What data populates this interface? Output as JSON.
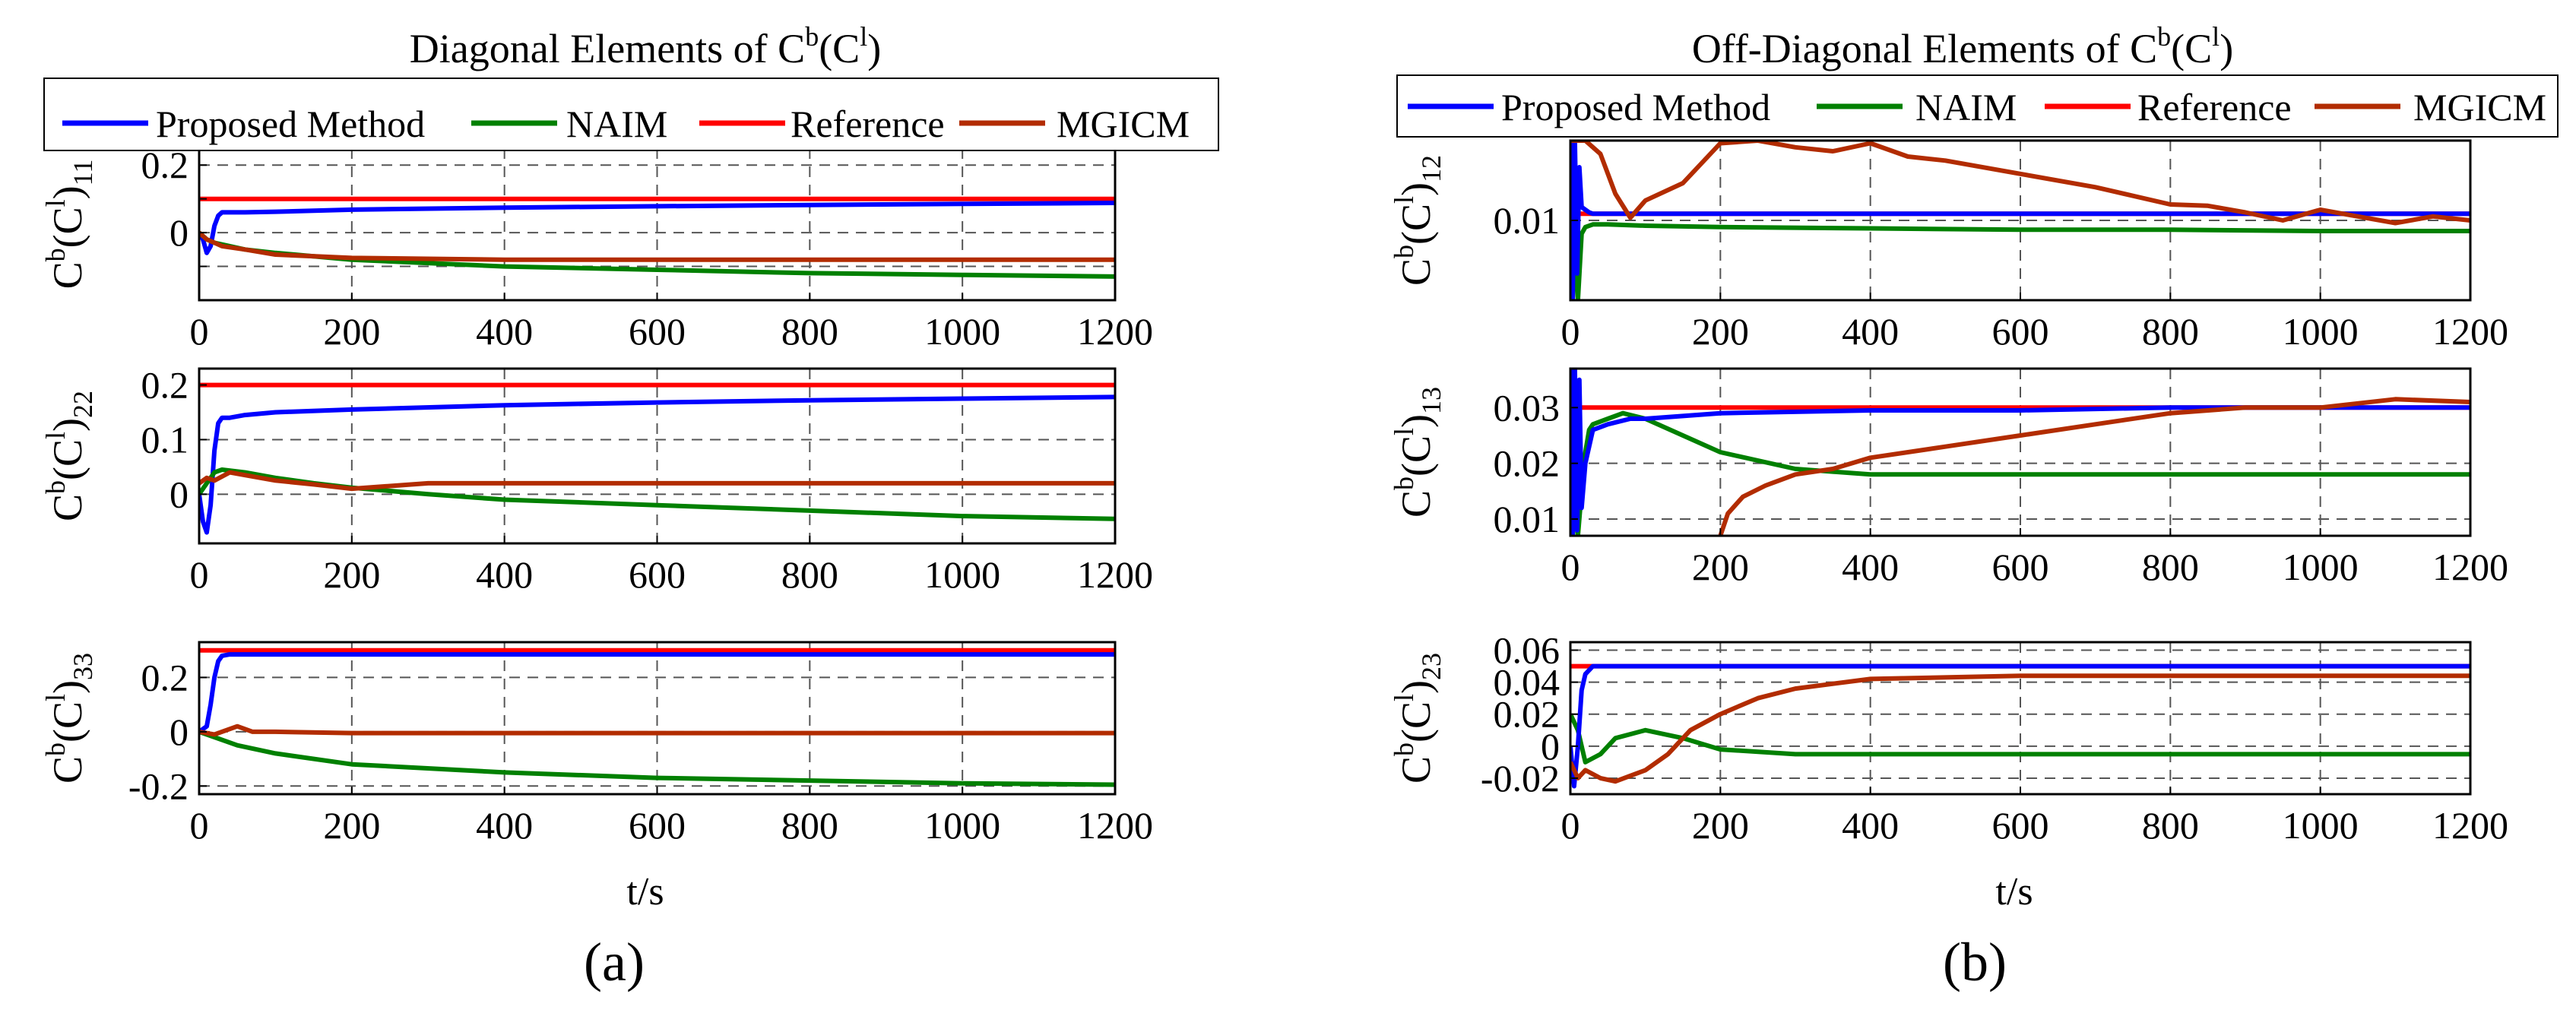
{
  "colors": {
    "proposed": "#0000ff",
    "naim": "#008000",
    "reference": "#ff0000",
    "mgicm": "#b22c00",
    "grid": "#555555",
    "axis": "#000000"
  },
  "panels": [
    {
      "title": "Diagonal Elements of C^b(C^l)",
      "title_main": "Diagonal Elements of C",
      "title_sup": "b",
      "title_mid": "(C",
      "title_sup2": "l",
      "title_end": ")",
      "caption": "(a)",
      "xlabel": "t/s"
    },
    {
      "title": "Off-Diagonal Elements of C^b(C^l)",
      "title_main": "Off-Diagonal Elements of C",
      "title_sup": "b",
      "title_mid": "(C",
      "title_sup2": "l",
      "title_end": ")",
      "caption": "(b)",
      "xlabel": "t/s"
    }
  ],
  "legend": [
    "Proposed Method",
    "NAIM",
    "Reference",
    "MGICM"
  ],
  "chart_data": [
    {
      "type": "line",
      "id": "a1",
      "ylabel": "C^b(C^l)_11",
      "ylabel_parts": {
        "C": "C",
        "b": "b",
        "open": "(C",
        "l": "l",
        "close": ")",
        "sub": "11"
      },
      "xlim": [
        0,
        1200
      ],
      "ylim": [
        -0.2,
        0.25
      ],
      "xticks": [
        0,
        200,
        400,
        600,
        800,
        1000,
        1200
      ],
      "yticks": [
        -0.1,
        0,
        0.1,
        0.2
      ],
      "ytick_labels": [
        "",
        "0",
        "",
        "0.2"
      ],
      "series": [
        {
          "name": "Reference",
          "x": [
            0,
            1200
          ],
          "y": [
            0.1,
            0.1
          ]
        },
        {
          "name": "Proposed Method",
          "x": [
            0,
            5,
            10,
            15,
            20,
            25,
            30,
            40,
            60,
            100,
            200,
            400,
            600,
            800,
            1000,
            1200
          ],
          "y": [
            0,
            -0.02,
            -0.06,
            -0.04,
            0.02,
            0.05,
            0.06,
            0.06,
            0.06,
            0.062,
            0.068,
            0.074,
            0.078,
            0.082,
            0.085,
            0.088
          ]
        },
        {
          "name": "NAIM",
          "x": [
            0,
            10,
            20,
            30,
            60,
            100,
            200,
            400,
            600,
            800,
            1000,
            1200
          ],
          "y": [
            0,
            -0.02,
            -0.03,
            -0.035,
            -0.05,
            -0.06,
            -0.08,
            -0.1,
            -0.11,
            -0.12,
            -0.125,
            -0.13
          ]
        },
        {
          "name": "MGICM",
          "x": [
            0,
            10,
            20,
            30,
            60,
            100,
            200,
            400,
            600,
            800,
            1000,
            1200
          ],
          "y": [
            0,
            -0.02,
            -0.03,
            -0.04,
            -0.05,
            -0.065,
            -0.075,
            -0.08,
            -0.08,
            -0.08,
            -0.08,
            -0.08
          ]
        }
      ]
    },
    {
      "type": "line",
      "id": "a2",
      "ylabel": "C^b(C^l)_22",
      "ylabel_parts": {
        "C": "C",
        "b": "b",
        "open": "(C",
        "l": "l",
        "close": ")",
        "sub": "22"
      },
      "xlim": [
        0,
        1200
      ],
      "ylim": [
        -0.09,
        0.23
      ],
      "xticks": [
        0,
        200,
        400,
        600,
        800,
        1000,
        1200
      ],
      "yticks": [
        0,
        0.1,
        0.2
      ],
      "ytick_labels": [
        "0",
        "0.1",
        "0.2"
      ],
      "series": [
        {
          "name": "Reference",
          "x": [
            0,
            1200
          ],
          "y": [
            0.2,
            0.2
          ]
        },
        {
          "name": "Proposed Method",
          "x": [
            0,
            5,
            10,
            15,
            20,
            25,
            30,
            40,
            60,
            100,
            200,
            400,
            600,
            800,
            1000,
            1200
          ],
          "y": [
            0,
            -0.05,
            -0.07,
            -0.02,
            0.08,
            0.13,
            0.14,
            0.14,
            0.145,
            0.15,
            0.155,
            0.163,
            0.168,
            0.172,
            0.175,
            0.178
          ]
        },
        {
          "name": "NAIM",
          "x": [
            0,
            10,
            20,
            30,
            60,
            100,
            150,
            200,
            300,
            400,
            600,
            800,
            1000,
            1200
          ],
          "y": [
            0,
            0.02,
            0.04,
            0.045,
            0.04,
            0.03,
            0.02,
            0.012,
            0.0,
            -0.01,
            -0.02,
            -0.03,
            -0.04,
            -0.045
          ]
        },
        {
          "name": "MGICM",
          "x": [
            0,
            10,
            20,
            40,
            60,
            100,
            150,
            200,
            300,
            400,
            600,
            800,
            1000,
            1200
          ],
          "y": [
            0.02,
            0.03,
            0.025,
            0.04,
            0.035,
            0.025,
            0.018,
            0.01,
            0.02,
            0.02,
            0.02,
            0.02,
            0.02,
            0.02
          ]
        }
      ]
    },
    {
      "type": "line",
      "id": "a3",
      "ylabel": "C^b(C^l)_33",
      "ylabel_parts": {
        "C": "C",
        "b": "b",
        "open": "(C",
        "l": "l",
        "close": ")",
        "sub": "33"
      },
      "xlim": [
        0,
        1200
      ],
      "ylim": [
        -0.23,
        0.33
      ],
      "xticks": [
        0,
        200,
        400,
        600,
        800,
        1000,
        1200
      ],
      "yticks": [
        -0.2,
        0,
        0.2
      ],
      "ytick_labels": [
        "-0.2",
        "0",
        "0.2"
      ],
      "series": [
        {
          "name": "Reference",
          "x": [
            0,
            1200
          ],
          "y": [
            0.3,
            0.3
          ]
        },
        {
          "name": "Proposed Method",
          "x": [
            0,
            10,
            15,
            20,
            25,
            30,
            40,
            60,
            100,
            400,
            800,
            1200
          ],
          "y": [
            0,
            0.02,
            0.1,
            0.2,
            0.26,
            0.28,
            0.285,
            0.285,
            0.285,
            0.285,
            0.285,
            0.285
          ]
        },
        {
          "name": "NAIM",
          "x": [
            0,
            20,
            50,
            100,
            200,
            400,
            600,
            800,
            1000,
            1200
          ],
          "y": [
            0,
            -0.02,
            -0.05,
            -0.08,
            -0.12,
            -0.15,
            -0.17,
            -0.18,
            -0.19,
            -0.195
          ]
        },
        {
          "name": "MGICM",
          "x": [
            0,
            20,
            50,
            70,
            100,
            200,
            400,
            600,
            800,
            1000,
            1200
          ],
          "y": [
            0,
            -0.01,
            0.02,
            0.0,
            0.0,
            -0.005,
            -0.005,
            -0.005,
            -0.005,
            -0.005,
            -0.005
          ]
        }
      ]
    },
    {
      "type": "line",
      "id": "b1",
      "ylabel": "C^b(C^l)_12",
      "ylabel_parts": {
        "C": "C",
        "b": "b",
        "open": "(C",
        "l": "l",
        "close": ")",
        "sub": "12"
      },
      "xlim": [
        0,
        1200
      ],
      "ylim": [
        0.004,
        0.016
      ],
      "xticks": [
        0,
        200,
        400,
        600,
        800,
        1000,
        1200
      ],
      "yticks": [
        0.01
      ],
      "ytick_labels": [
        "0.01"
      ],
      "series": [
        {
          "name": "Reference",
          "x": [
            0,
            1200
          ],
          "y": [
            0.0105,
            0.0105
          ]
        },
        {
          "name": "NAIM",
          "x": [
            0,
            5,
            10,
            15,
            20,
            30,
            50,
            100,
            200,
            400,
            600,
            800,
            1000,
            1200
          ],
          "y": [
            0.004,
            0.008,
            0.004,
            0.009,
            0.0095,
            0.0097,
            0.0097,
            0.0096,
            0.0095,
            0.0094,
            0.0093,
            0.0093,
            0.0092,
            0.0092
          ]
        },
        {
          "name": "Proposed Method",
          "x": [
            0,
            3,
            6,
            9,
            12,
            15,
            20,
            25,
            30,
            40,
            1200
          ],
          "y": [
            0.016,
            0.004,
            0.016,
            0.006,
            0.014,
            0.011,
            0.0108,
            0.0106,
            0.0105,
            0.0105,
            0.0105
          ]
        },
        {
          "name": "MGICM",
          "x": [
            0,
            20,
            40,
            60,
            80,
            100,
            150,
            200,
            250,
            300,
            350,
            400,
            450,
            500,
            600,
            700,
            800,
            850,
            900,
            950,
            1000,
            1050,
            1100,
            1150,
            1200
          ],
          "y": [
            0.016,
            0.016,
            0.015,
            0.012,
            0.0102,
            0.0115,
            0.0128,
            0.0158,
            0.016,
            0.0155,
            0.0152,
            0.0158,
            0.0148,
            0.0145,
            0.0135,
            0.0125,
            0.0112,
            0.0111,
            0.0106,
            0.01,
            0.0108,
            0.0103,
            0.0098,
            0.0103,
            0.01
          ]
        }
      ]
    },
    {
      "type": "line",
      "id": "b2",
      "ylabel": "C^b(C^l)_13",
      "ylabel_parts": {
        "C": "C",
        "b": "b",
        "open": "(C",
        "l": "l",
        "close": ")",
        "sub": "13"
      },
      "xlim": [
        0,
        1200
      ],
      "ylim": [
        0.007,
        0.037
      ],
      "xticks": [
        0,
        200,
        400,
        600,
        800,
        1000,
        1200
      ],
      "yticks": [
        0.01,
        0.02,
        0.03
      ],
      "ytick_labels": [
        "0.01",
        "0.02",
        "0.03"
      ],
      "series": [
        {
          "name": "Reference",
          "x": [
            0,
            1200
          ],
          "y": [
            0.03,
            0.03
          ]
        },
        {
          "name": "NAIM",
          "x": [
            0,
            5,
            10,
            15,
            20,
            25,
            30,
            50,
            70,
            100,
            150,
            200,
            300,
            400,
            600,
            800,
            1000,
            1200
          ],
          "y": [
            0.007,
            0.012,
            0.007,
            0.015,
            0.022,
            0.026,
            0.027,
            0.028,
            0.029,
            0.028,
            0.025,
            0.022,
            0.019,
            0.018,
            0.018,
            0.018,
            0.018,
            0.018
          ]
        },
        {
          "name": "Proposed Method",
          "x": [
            0,
            3,
            6,
            9,
            12,
            15,
            20,
            30,
            50,
            80,
            100,
            200,
            400,
            600,
            800,
            1000,
            1200
          ],
          "y": [
            0.037,
            0.007,
            0.037,
            0.008,
            0.035,
            0.012,
            0.02,
            0.026,
            0.027,
            0.028,
            0.028,
            0.029,
            0.0295,
            0.0295,
            0.03,
            0.03,
            0.03
          ]
        },
        {
          "name": "MGICM",
          "x": [
            200,
            210,
            230,
            260,
            300,
            350,
            400,
            500,
            600,
            700,
            800,
            900,
            1000,
            1100,
            1200
          ],
          "y": [
            0.007,
            0.011,
            0.014,
            0.016,
            0.018,
            0.019,
            0.021,
            0.023,
            0.025,
            0.027,
            0.029,
            0.03,
            0.03,
            0.0315,
            0.031
          ]
        }
      ]
    },
    {
      "type": "line",
      "id": "b3",
      "ylabel": "C^b(C^l)_23",
      "ylabel_parts": {
        "C": "C",
        "b": "b",
        "open": "(C",
        "l": "l",
        "close": ")",
        "sub": "23"
      },
      "xlim": [
        0,
        1200
      ],
      "ylim": [
        -0.03,
        0.065
      ],
      "xticks": [
        0,
        200,
        400,
        600,
        800,
        1000,
        1200
      ],
      "yticks": [
        -0.02,
        0,
        0.02,
        0.04,
        0.06
      ],
      "ytick_labels": [
        "-0.02",
        "0",
        "0.02",
        "0.04",
        "0.06"
      ],
      "series": [
        {
          "name": "Reference",
          "x": [
            0,
            1200
          ],
          "y": [
            0.05,
            0.05
          ]
        },
        {
          "name": "NAIM",
          "x": [
            0,
            10,
            20,
            40,
            60,
            100,
            150,
            200,
            300,
            400,
            600,
            800,
            1000,
            1200
          ],
          "y": [
            0.02,
            0.01,
            -0.01,
            -0.005,
            0.005,
            0.01,
            0.005,
            -0.002,
            -0.005,
            -0.005,
            -0.005,
            -0.005,
            -0.005,
            -0.005
          ]
        },
        {
          "name": "Proposed Method",
          "x": [
            0,
            5,
            10,
            15,
            20,
            30,
            40,
            60,
            100,
            200,
            1200
          ],
          "y": [
            0.0,
            -0.025,
            0.0,
            0.035,
            0.045,
            0.05,
            0.05,
            0.05,
            0.05,
            0.05,
            0.05
          ]
        },
        {
          "name": "MGICM",
          "x": [
            0,
            10,
            20,
            40,
            60,
            100,
            130,
            160,
            200,
            250,
            300,
            400,
            600,
            800,
            1000,
            1200
          ],
          "y": [
            -0.01,
            -0.02,
            -0.015,
            -0.02,
            -0.022,
            -0.015,
            -0.005,
            0.01,
            0.02,
            0.03,
            0.036,
            0.042,
            0.044,
            0.044,
            0.044,
            0.044
          ]
        }
      ]
    }
  ]
}
